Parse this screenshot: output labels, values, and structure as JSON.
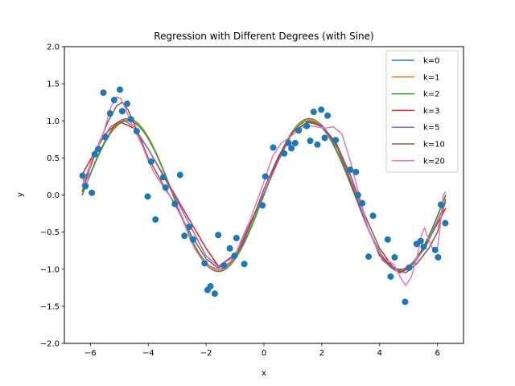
{
  "chart_data": {
    "type": "scatter",
    "title": "Regression with Different Degrees (with Sine)",
    "xlabel": "x",
    "ylabel": "y",
    "xlim": [
      -6.9,
      6.9
    ],
    "ylim": [
      -2.0,
      2.0
    ],
    "xticks": [
      -6,
      -4,
      -2,
      0,
      2,
      4,
      6
    ],
    "xtick_labels": [
      "−6",
      "−4",
      "−2",
      "0",
      "2",
      "4",
      "6"
    ],
    "yticks": [
      -2.0,
      -1.5,
      -1.0,
      -0.5,
      0.0,
      0.5,
      1.0,
      1.5,
      2.0
    ],
    "ytick_labels": [
      "−2.0",
      "−1.5",
      "−1.0",
      "−0.5",
      "0.0",
      "0.5",
      "1.0",
      "1.5",
      "2.0"
    ],
    "grid": false,
    "legend_position": "upper right",
    "scatter": {
      "color": "#1f77b4",
      "points": [
        [
          -6.27,
          0.26
        ],
        [
          -6.17,
          0.12
        ],
        [
          -5.95,
          0.03
        ],
        [
          -5.85,
          0.55
        ],
        [
          -5.73,
          0.62
        ],
        [
          -5.55,
          1.38
        ],
        [
          -5.48,
          0.78
        ],
        [
          -5.32,
          1.1
        ],
        [
          -5.18,
          1.28
        ],
        [
          -4.98,
          1.42
        ],
        [
          -4.9,
          1.13
        ],
        [
          -4.73,
          1.23
        ],
        [
          -4.6,
          1.02
        ],
        [
          -4.4,
          0.86
        ],
        [
          -4.02,
          -0.02
        ],
        [
          -3.9,
          0.45
        ],
        [
          -3.75,
          -0.33
        ],
        [
          -3.48,
          0.24
        ],
        [
          -3.4,
          0.1
        ],
        [
          -3.08,
          -0.12
        ],
        [
          -2.9,
          0.27
        ],
        [
          -2.75,
          -0.55
        ],
        [
          -2.58,
          -0.43
        ],
        [
          -2.45,
          -0.6
        ],
        [
          -2.05,
          -0.92
        ],
        [
          -1.95,
          -1.28
        ],
        [
          -1.85,
          -1.23
        ],
        [
          -1.7,
          -1.33
        ],
        [
          -1.58,
          -0.54
        ],
        [
          -1.38,
          -0.95
        ],
        [
          -1.18,
          -0.72
        ],
        [
          -1.02,
          -0.82
        ],
        [
          -0.95,
          -0.58
        ],
        [
          -0.68,
          -0.93
        ],
        [
          -0.05,
          -0.14
        ],
        [
          0.05,
          0.25
        ],
        [
          0.32,
          0.64
        ],
        [
          0.7,
          0.56
        ],
        [
          0.85,
          0.7
        ],
        [
          0.95,
          0.63
        ],
        [
          1.08,
          0.7
        ],
        [
          1.2,
          0.87
        ],
        [
          1.48,
          0.93
        ],
        [
          1.6,
          0.73
        ],
        [
          1.72,
          1.12
        ],
        [
          1.85,
          0.68
        ],
        [
          1.98,
          1.15
        ],
        [
          2.1,
          0.77
        ],
        [
          2.2,
          1.07
        ],
        [
          2.48,
          0.74
        ],
        [
          2.98,
          0.34
        ],
        [
          3.18,
          0.31
        ],
        [
          3.25,
          0.0
        ],
        [
          3.4,
          -0.11
        ],
        [
          3.62,
          -0.83
        ],
        [
          3.77,
          -0.28
        ],
        [
          4.28,
          -0.6
        ],
        [
          4.38,
          -1.1
        ],
        [
          4.52,
          -0.84
        ],
        [
          4.88,
          -1.44
        ],
        [
          5.02,
          -0.98
        ],
        [
          5.28,
          -0.66
        ],
        [
          5.42,
          -0.62
        ],
        [
          5.52,
          -0.7
        ],
        [
          5.92,
          -0.74
        ],
        [
          6.02,
          -0.84
        ],
        [
          6.12,
          -0.13
        ],
        [
          6.27,
          -0.38
        ]
      ]
    },
    "series": [
      {
        "name": "k=0",
        "color": "#1f77b4",
        "model": "sine",
        "amplitude": 1.03,
        "offset": 0.0
      },
      {
        "name": "k=1",
        "color": "#ff7f0e",
        "model": "sine",
        "amplitude": 1.02,
        "offset": 0.0
      },
      {
        "name": "k=2",
        "color": "#2ca02c",
        "model": "sine",
        "amplitude": 1.0,
        "offset": 0.0
      },
      {
        "name": "k=3",
        "color": "#d62728",
        "model": "poly",
        "points": [
          [
            -6.28,
            0.28
          ],
          [
            -5.5,
            0.82
          ],
          [
            -5.0,
            0.99
          ],
          [
            -4.5,
            0.9
          ],
          [
            -4.0,
            0.62
          ],
          [
            -3.0,
            -0.05
          ],
          [
            -2.0,
            -0.72
          ],
          [
            -1.57,
            -0.96
          ],
          [
            -1.0,
            -0.8
          ],
          [
            -0.5,
            -0.4
          ],
          [
            0.0,
            0.02
          ],
          [
            0.5,
            0.48
          ],
          [
            1.0,
            0.85
          ],
          [
            1.57,
            1.0
          ],
          [
            2.0,
            0.92
          ],
          [
            2.5,
            0.68
          ],
          [
            3.0,
            0.18
          ],
          [
            3.5,
            -0.35
          ],
          [
            4.0,
            -0.82
          ],
          [
            4.7,
            -1.05
          ],
          [
            5.2,
            -0.92
          ],
          [
            5.7,
            -0.6
          ],
          [
            6.28,
            -0.18
          ]
        ]
      },
      {
        "name": "k=5",
        "color": "#9467bd",
        "model": "poly",
        "points": [
          [
            -6.28,
            0.12
          ],
          [
            -5.8,
            0.62
          ],
          [
            -5.3,
            0.92
          ],
          [
            -4.9,
            1.02
          ],
          [
            -4.5,
            0.92
          ],
          [
            -4.0,
            0.62
          ],
          [
            -3.0,
            -0.08
          ],
          [
            -2.0,
            -0.82
          ],
          [
            -1.57,
            -0.96
          ],
          [
            -1.0,
            -0.82
          ],
          [
            -0.5,
            -0.42
          ],
          [
            0.0,
            0.02
          ],
          [
            0.5,
            0.46
          ],
          [
            1.0,
            0.85
          ],
          [
            1.57,
            0.99
          ],
          [
            2.0,
            0.92
          ],
          [
            2.6,
            0.6
          ],
          [
            3.1,
            0.1
          ],
          [
            3.6,
            -0.45
          ],
          [
            4.1,
            -0.88
          ],
          [
            4.6,
            -1.03
          ],
          [
            5.1,
            -0.95
          ],
          [
            5.6,
            -0.7
          ],
          [
            6.28,
            -0.1
          ]
        ]
      },
      {
        "name": "k=10",
        "color": "#8c564b",
        "model": "poly",
        "points": [
          [
            -6.28,
            0.05
          ],
          [
            -6.0,
            0.38
          ],
          [
            -5.7,
            0.7
          ],
          [
            -5.4,
            0.98
          ],
          [
            -5.1,
            1.2
          ],
          [
            -4.9,
            1.25
          ],
          [
            -4.7,
            1.15
          ],
          [
            -4.4,
            0.88
          ],
          [
            -4.0,
            0.5
          ],
          [
            -3.5,
            0.15
          ],
          [
            -3.0,
            -0.18
          ],
          [
            -2.5,
            -0.55
          ],
          [
            -2.0,
            -0.86
          ],
          [
            -1.6,
            -0.98
          ],
          [
            -1.2,
            -0.92
          ],
          [
            -0.8,
            -0.7
          ],
          [
            -0.4,
            -0.34
          ],
          [
            0.0,
            0.08
          ],
          [
            0.5,
            0.52
          ],
          [
            1.0,
            0.85
          ],
          [
            1.5,
            0.98
          ],
          [
            2.0,
            0.94
          ],
          [
            2.5,
            0.7
          ],
          [
            3.0,
            0.26
          ],
          [
            3.5,
            -0.28
          ],
          [
            4.0,
            -0.72
          ],
          [
            4.5,
            -0.99
          ],
          [
            4.9,
            -1.05
          ],
          [
            5.3,
            -0.92
          ],
          [
            5.7,
            -0.72
          ],
          [
            6.0,
            -0.5
          ],
          [
            6.28,
            -0.06
          ]
        ]
      },
      {
        "name": "k=20",
        "color": "#e377c2",
        "model": "poly",
        "points": [
          [
            -6.28,
            0.27
          ],
          [
            -6.2,
            0.12
          ],
          [
            -6.1,
            0.18
          ],
          [
            -6.0,
            0.42
          ],
          [
            -5.85,
            0.6
          ],
          [
            -5.7,
            0.68
          ],
          [
            -5.5,
            0.9
          ],
          [
            -5.3,
            1.18
          ],
          [
            -5.1,
            1.32
          ],
          [
            -4.95,
            1.3
          ],
          [
            -4.8,
            1.18
          ],
          [
            -4.6,
            0.98
          ],
          [
            -4.4,
            0.82
          ],
          [
            -4.2,
            0.66
          ],
          [
            -4.0,
            0.46
          ],
          [
            -3.8,
            0.3
          ],
          [
            -3.6,
            0.18
          ],
          [
            -3.4,
            0.06
          ],
          [
            -3.2,
            -0.04
          ],
          [
            -3.0,
            -0.14
          ],
          [
            -2.8,
            -0.32
          ],
          [
            -2.6,
            -0.55
          ],
          [
            -2.4,
            -0.72
          ],
          [
            -2.2,
            -0.84
          ],
          [
            -2.0,
            -0.92
          ],
          [
            -1.8,
            -0.97
          ],
          [
            -1.6,
            -1.0
          ],
          [
            -1.4,
            -0.98
          ],
          [
            -1.2,
            -0.92
          ],
          [
            -1.0,
            -0.82
          ],
          [
            -0.8,
            -0.62
          ],
          [
            -0.5,
            -0.36
          ],
          [
            -0.2,
            -0.04
          ],
          [
            0.0,
            0.18
          ],
          [
            0.3,
            0.52
          ],
          [
            0.6,
            0.7
          ],
          [
            0.9,
            0.78
          ],
          [
            1.2,
            0.88
          ],
          [
            1.5,
            0.94
          ],
          [
            1.8,
            0.92
          ],
          [
            2.1,
            0.9
          ],
          [
            2.4,
            0.92
          ],
          [
            2.7,
            0.82
          ],
          [
            3.0,
            0.44
          ],
          [
            3.3,
            -0.02
          ],
          [
            3.6,
            -0.44
          ],
          [
            3.9,
            -0.72
          ],
          [
            4.2,
            -0.86
          ],
          [
            4.5,
            -0.94
          ],
          [
            4.7,
            -1.1
          ],
          [
            4.9,
            -1.22
          ],
          [
            5.1,
            -1.1
          ],
          [
            5.3,
            -0.82
          ],
          [
            5.45,
            -0.54
          ],
          [
            5.55,
            -0.44
          ],
          [
            5.7,
            -0.6
          ],
          [
            5.85,
            -0.74
          ],
          [
            6.0,
            -0.72
          ],
          [
            6.1,
            -0.4
          ],
          [
            6.2,
            0.0
          ],
          [
            6.28,
            0.04
          ]
        ]
      }
    ]
  }
}
